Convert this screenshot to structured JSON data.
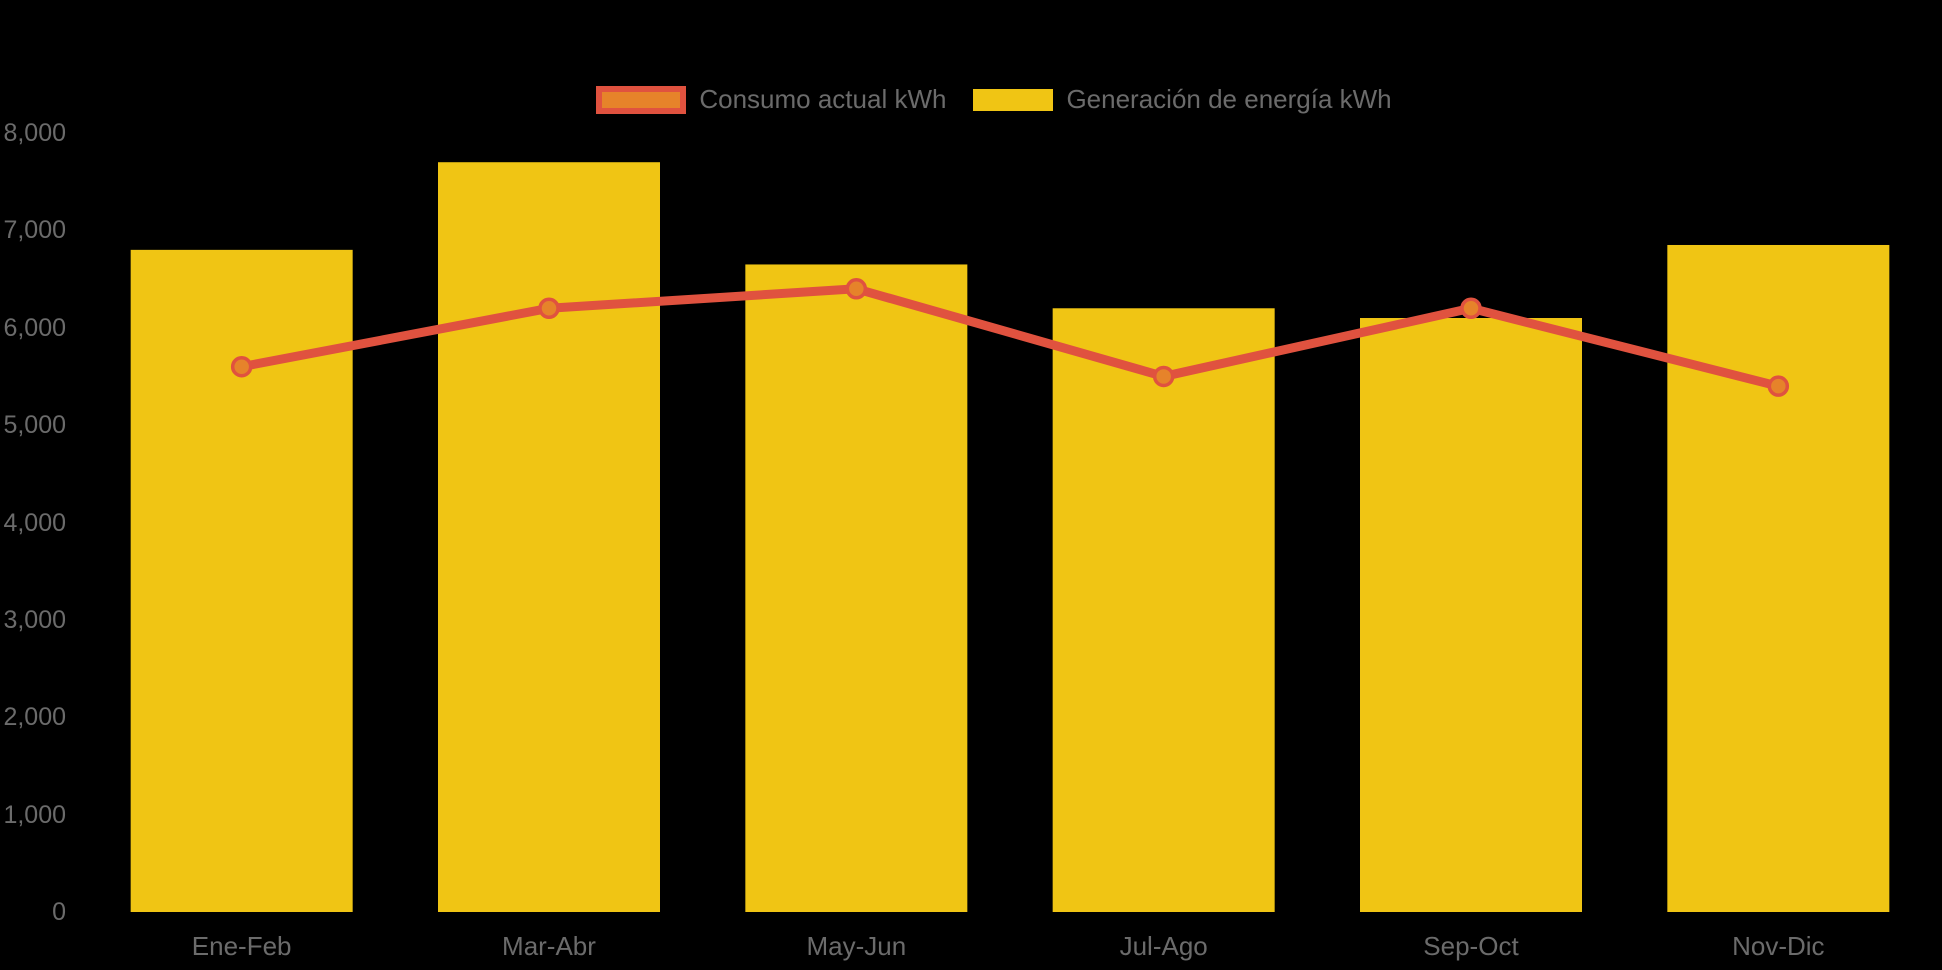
{
  "chart_data": {
    "type": "combo",
    "categories": [
      "Ene-Feb",
      "Mar-Abr",
      "May-Jun",
      "Jul-Ago",
      "Sep-Oct",
      "Nov-Dic"
    ],
    "series": [
      {
        "name": "Consumo actual kWh",
        "type": "line",
        "values": [
          5600,
          6200,
          6400,
          5500,
          6200,
          5400
        ],
        "line_color": "#E0523F",
        "point_fill_color": "#E6832A",
        "point_border_color": "#E0523F"
      },
      {
        "name": "Generación de energía kWh",
        "type": "bar",
        "values": [
          6800,
          7700,
          6650,
          6200,
          6100,
          6850
        ],
        "color": "#F0C514"
      }
    ],
    "ylim": [
      0,
      8000
    ],
    "ytick_step": 1000,
    "ytick_labels": [
      "0",
      "1,000",
      "2,000",
      "3,000",
      "4,000",
      "5,000",
      "6,000",
      "7,000",
      "8,000"
    ],
    "xlabel": "",
    "ylabel": "",
    "title": "",
    "grid": false,
    "legend_position": "top",
    "axis_text_color": "#6B6B6B",
    "background_color": "#000000"
  }
}
